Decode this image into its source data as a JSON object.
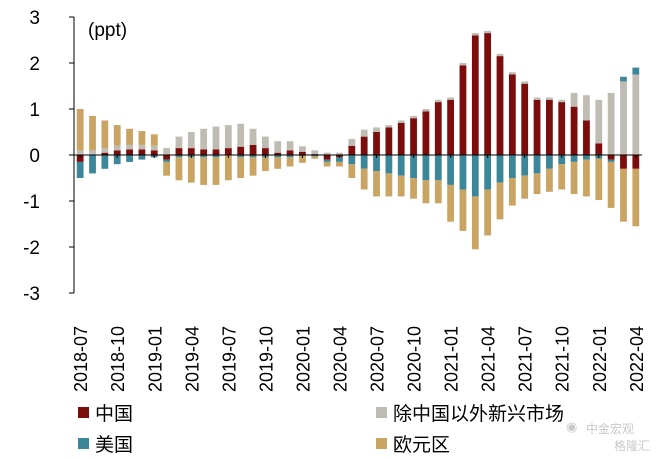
{
  "chart_data": {
    "type": "bar",
    "stacked": true,
    "unit": "(ppt)",
    "ylim": [
      -3,
      3
    ],
    "yticks": [
      -3,
      -2,
      -1,
      0,
      1,
      2,
      3
    ],
    "grid": false,
    "legend_placement": "bottom",
    "x": [
      "2018-07",
      "2018-08",
      "2018-09",
      "2018-10",
      "2018-11",
      "2018-12",
      "2019-01",
      "2019-02",
      "2019-03",
      "2019-04",
      "2019-05",
      "2019-06",
      "2019-07",
      "2019-08",
      "2019-09",
      "2019-10",
      "2019-11",
      "2019-12",
      "2020-01",
      "2020-02",
      "2020-03",
      "2020-04",
      "2020-05",
      "2020-06",
      "2020-07",
      "2020-08",
      "2020-09",
      "2020-10",
      "2020-11",
      "2020-12",
      "2021-01",
      "2021-02",
      "2021-03",
      "2021-04",
      "2021-05",
      "2021-06",
      "2021-07",
      "2021-08",
      "2021-09",
      "2021-10",
      "2021-11",
      "2021-12",
      "2022-01",
      "2022-02",
      "2022-03",
      "2022-04"
    ],
    "tick_labels": [
      "2018-07",
      "2018-10",
      "2019-01",
      "2019-04",
      "2019-07",
      "2019-10",
      "2020-01",
      "2020-04",
      "2020-07",
      "2020-10",
      "2021-01",
      "2021-04",
      "2021-07",
      "2021-10",
      "2022-01",
      "2022-04"
    ],
    "series": [
      {
        "name": "中国",
        "color": "#7b0d0d",
        "values": [
          -0.15,
          0.0,
          0.05,
          0.1,
          0.12,
          0.12,
          0.1,
          -0.1,
          0.15,
          0.15,
          0.12,
          0.12,
          0.15,
          0.18,
          0.22,
          0.15,
          0.05,
          0.1,
          0.07,
          0.02,
          -0.1,
          -0.05,
          0.2,
          0.4,
          0.5,
          0.6,
          0.7,
          0.8,
          0.95,
          1.15,
          1.2,
          1.95,
          2.6,
          2.65,
          2.15,
          1.75,
          1.55,
          1.2,
          1.2,
          1.15,
          1.05,
          0.75,
          0.25,
          -0.1,
          -0.3,
          -0.3
        ]
      },
      {
        "name": "除中国以外新兴市场",
        "color": "#bfbcb3",
        "values": [
          0.1,
          0.1,
          0.1,
          0.1,
          0.1,
          0.1,
          0.1,
          0.15,
          0.25,
          0.35,
          0.45,
          0.5,
          0.5,
          0.5,
          0.35,
          0.25,
          0.25,
          0.2,
          0.12,
          0.08,
          0.05,
          0.05,
          0.15,
          0.15,
          0.1,
          0.05,
          0.05,
          0.05,
          0.05,
          0.05,
          0.05,
          0.05,
          0.05,
          0.05,
          0.05,
          0.05,
          0.05,
          0.05,
          0.05,
          0.05,
          0.3,
          0.55,
          0.95,
          1.35,
          1.6,
          1.75
        ]
      },
      {
        "name": "美国",
        "color": "#3b8799",
        "values": [
          -0.35,
          -0.4,
          -0.3,
          -0.2,
          -0.15,
          -0.1,
          -0.05,
          -0.05,
          -0.05,
          -0.05,
          -0.05,
          -0.05,
          0.0,
          -0.05,
          -0.05,
          -0.05,
          -0.05,
          -0.05,
          -0.02,
          -0.03,
          -0.05,
          -0.1,
          -0.2,
          -0.3,
          -0.35,
          -0.4,
          -0.45,
          -0.5,
          -0.55,
          -0.55,
          -0.65,
          -0.75,
          -0.9,
          -0.75,
          -0.6,
          -0.5,
          -0.45,
          -0.4,
          -0.3,
          -0.2,
          -0.15,
          -0.1,
          -0.08,
          -0.05,
          0.1,
          0.15
        ]
      },
      {
        "name": "欧元区",
        "color": "#c9a463",
        "values": [
          0.9,
          0.75,
          0.6,
          0.45,
          0.35,
          0.3,
          0.25,
          -0.3,
          -0.5,
          -0.55,
          -0.6,
          -0.6,
          -0.55,
          -0.45,
          -0.4,
          -0.3,
          -0.25,
          -0.2,
          -0.15,
          -0.05,
          -0.1,
          -0.1,
          -0.3,
          -0.45,
          -0.55,
          -0.5,
          -0.45,
          -0.45,
          -0.5,
          -0.5,
          -0.8,
          -0.9,
          -1.15,
          -1.0,
          -0.8,
          -0.6,
          -0.5,
          -0.45,
          -0.5,
          -0.55,
          -0.7,
          -0.8,
          -0.9,
          -1.0,
          -1.15,
          -1.25
        ]
      }
    ]
  },
  "legend": [
    {
      "label": "中国",
      "color": "#7b0d0d"
    },
    {
      "label": "除中国以外新兴市场",
      "color": "#bfbcb3"
    },
    {
      "label": "美国",
      "color": "#3b8799"
    },
    {
      "label": "欧元区",
      "color": "#c9a463"
    }
  ],
  "watermark": {
    "line1": "中金宏观",
    "line2": "格隆汇"
  }
}
